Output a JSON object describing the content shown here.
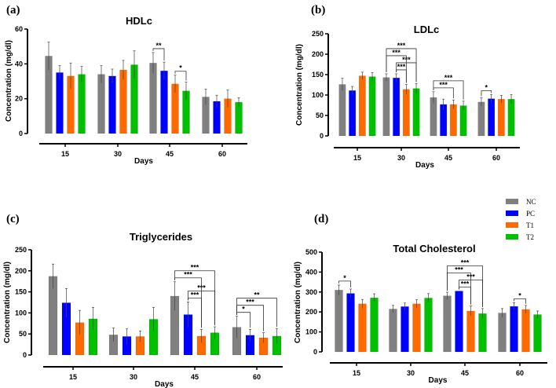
{
  "legend": {
    "items": [
      {
        "label": "NC",
        "color": "#808080"
      },
      {
        "label": "PC",
        "color": "#0000ff"
      },
      {
        "label": "T1",
        "color": "#ff6a00"
      },
      {
        "label": "T2",
        "color": "#00c000"
      }
    ]
  },
  "chart_data": [
    {
      "panel": "(a)",
      "type": "bar",
      "title": "HDLc",
      "xlabel": "Days",
      "ylabel": "Concentration (mg/dl)",
      "categories": [
        "15",
        "30",
        "45",
        "60"
      ],
      "ylim": [
        0,
        60
      ],
      "yticks": [
        0,
        20,
        40,
        60
      ],
      "series": [
        {
          "name": "NC",
          "values": [
            44.5,
            34,
            40.5,
            21
          ],
          "errors": [
            8,
            5,
            6,
            4.5
          ]
        },
        {
          "name": "PC",
          "values": [
            35,
            33,
            36,
            18.5
          ],
          "errors": [
            4,
            4,
            5,
            3.5
          ]
        },
        {
          "name": "T1",
          "values": [
            33,
            36.5,
            28.5,
            20
          ],
          "errors": [
            7.5,
            5.5,
            5,
            5
          ]
        },
        {
          "name": "T2",
          "values": [
            34,
            39.5,
            24.5,
            18
          ],
          "errors": [
            4.5,
            8,
            5,
            2.5
          ]
        }
      ],
      "significance": [
        {
          "category": "45",
          "from": "NC",
          "to": "PC",
          "label": "**"
        },
        {
          "category": "45",
          "from": "T1",
          "to": "T2",
          "label": "*"
        }
      ]
    },
    {
      "panel": "(b)",
      "type": "bar",
      "title": "LDLc",
      "xlabel": "Days",
      "ylabel": "Concentration (mg/dl)",
      "categories": [
        "15",
        "30",
        "45",
        "60"
      ],
      "ylim": [
        0,
        250
      ],
      "yticks": [
        0,
        50,
        100,
        150,
        200,
        250
      ],
      "series": [
        {
          "name": "NC",
          "values": [
            126,
            143,
            94,
            83
          ],
          "errors": [
            15,
            9,
            14,
            10
          ]
        },
        {
          "name": "PC",
          "values": [
            111,
            142,
            77,
            91
          ],
          "errors": [
            10,
            10,
            13,
            10
          ]
        },
        {
          "name": "T1",
          "values": [
            147,
            114,
            77,
            90
          ],
          "errors": [
            9,
            12,
            11,
            9
          ]
        },
        {
          "name": "T2",
          "values": [
            145,
            116,
            74,
            90
          ],
          "errors": [
            10,
            12,
            11,
            11
          ]
        }
      ],
      "significance": [
        {
          "category": "30",
          "from": "PC",
          "to": "T1",
          "label": "***"
        },
        {
          "category": "30",
          "from": "PC",
          "to": "T2",
          "label": "***"
        },
        {
          "category": "30",
          "from": "NC",
          "to": "T1",
          "label": "***"
        },
        {
          "category": "30",
          "from": "NC",
          "to": "T2",
          "label": "***"
        },
        {
          "category": "45",
          "from": "NC",
          "to": "T1",
          "label": "***"
        },
        {
          "category": "45",
          "from": "NC",
          "to": "T2",
          "label": "***"
        },
        {
          "category": "60",
          "from": "NC",
          "to": "PC",
          "label": "*"
        }
      ]
    },
    {
      "panel": "(c)",
      "type": "bar",
      "title": "Triglycerides",
      "xlabel": "Days",
      "ylabel": "Concentration (mg/dl)",
      "categories": [
        "15",
        "30",
        "45",
        "60"
      ],
      "ylim": [
        0,
        250
      ],
      "yticks": [
        0,
        50,
        100,
        150,
        200,
        250
      ],
      "series": [
        {
          "name": "NC",
          "values": [
            187,
            48,
            140,
            66
          ],
          "errors": [
            29,
            16,
            34,
            26
          ]
        },
        {
          "name": "PC",
          "values": [
            124,
            44,
            96,
            47
          ],
          "errors": [
            34,
            18,
            30,
            14
          ]
        },
        {
          "name": "T1",
          "values": [
            77,
            44,
            45,
            41
          ],
          "errors": [
            29,
            13,
            16,
            12
          ]
        },
        {
          "name": "T2",
          "values": [
            86,
            85,
            53,
            45
          ],
          "errors": [
            27,
            28,
            14,
            18
          ]
        }
      ],
      "significance": [
        {
          "category": "45",
          "from": "PC",
          "to": "T1",
          "label": "***"
        },
        {
          "category": "45",
          "from": "PC",
          "to": "T2",
          "label": "***"
        },
        {
          "category": "45",
          "from": "NC",
          "to": "T1",
          "label": "***"
        },
        {
          "category": "45",
          "from": "NC",
          "to": "T2",
          "label": "***"
        },
        {
          "category": "60",
          "from": "NC",
          "to": "PC",
          "label": "*"
        },
        {
          "category": "60",
          "from": "NC",
          "to": "T1",
          "label": "***"
        },
        {
          "category": "60",
          "from": "NC",
          "to": "T2",
          "label": "**"
        }
      ]
    },
    {
      "panel": "(d)",
      "type": "bar",
      "title": "Total Cholesterol",
      "xlabel": "Days",
      "ylabel": "Concentration (mg/dl)",
      "categories": [
        "15",
        "30",
        "45",
        "60"
      ],
      "ylim": [
        0,
        500
      ],
      "yticks": [
        0,
        100,
        200,
        300,
        400,
        500
      ],
      "series": [
        {
          "name": "NC",
          "values": [
            310,
            215,
            281,
            195
          ],
          "errors": [
            25,
            18,
            18,
            22
          ]
        },
        {
          "name": "PC",
          "values": [
            293,
            227,
            305,
            228
          ],
          "errors": [
            22,
            18,
            0,
            18
          ]
        },
        {
          "name": "T1",
          "values": [
            241,
            241,
            205,
            213
          ],
          "errors": [
            22,
            20,
            25,
            20
          ]
        },
        {
          "name": "T2",
          "values": [
            271,
            270,
            192,
            187
          ],
          "errors": [
            20,
            22,
            25,
            18
          ]
        }
      ],
      "significance": [
        {
          "category": "15",
          "from": "NC",
          "to": "PC",
          "label": "*"
        },
        {
          "category": "45",
          "from": "PC",
          "to": "T1",
          "label": "***"
        },
        {
          "category": "45",
          "from": "PC",
          "to": "T2",
          "label": "***"
        },
        {
          "category": "45",
          "from": "NC",
          "to": "T1",
          "label": "***"
        },
        {
          "category": "45",
          "from": "NC",
          "to": "T2",
          "label": "***"
        },
        {
          "category": "60",
          "from": "PC",
          "to": "T1",
          "label": "*"
        }
      ]
    }
  ]
}
